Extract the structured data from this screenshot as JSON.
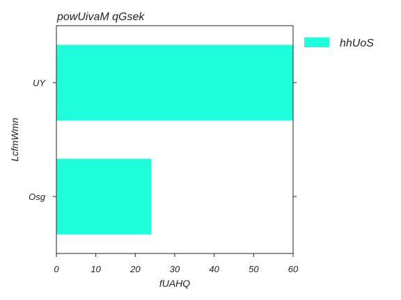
{
  "chart_data": {
    "type": "bar",
    "orientation": "horizontal",
    "title": "powUivaM qGsek",
    "xlabel": "fUAHQ",
    "ylabel": "LcfmWmn",
    "categories": [
      "UY",
      "Osg"
    ],
    "series": [
      {
        "name": "hhUoS",
        "values": [
          60,
          24
        ],
        "color": "#1effdc"
      }
    ],
    "xlim": [
      0,
      60
    ],
    "xticks": [
      "0",
      "10",
      "20",
      "30",
      "40",
      "50",
      "60"
    ],
    "grid": false,
    "legend_position": "right"
  }
}
